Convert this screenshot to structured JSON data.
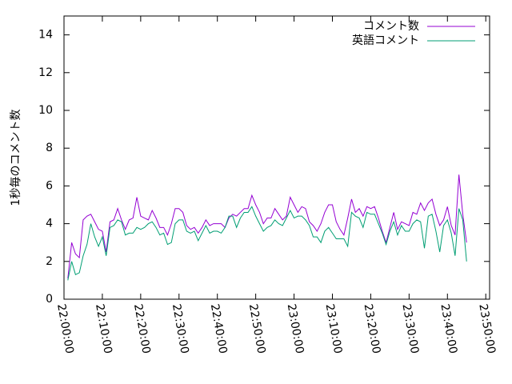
{
  "chart_data": {
    "type": "line",
    "y_label": "1秒毎のコメント数",
    "x": [
      "22:01:00",
      "22:02:00",
      "22:03:00",
      "22:04:00",
      "22:05:00",
      "22:06:00",
      "22:07:00",
      "22:08:00",
      "22:09:00",
      "22:10:00",
      "22:11:00",
      "22:12:00",
      "22:13:00",
      "22:14:00",
      "22:15:00",
      "22:16:00",
      "22:17:00",
      "22:18:00",
      "22:19:00",
      "22:20:00",
      "22:21:00",
      "22:22:00",
      "22:23:00",
      "22:24:00",
      "22:25:00",
      "22:26:00",
      "22:27:00",
      "22:28:00",
      "22:29:00",
      "22:30:00",
      "22:31:00",
      "22:32:00",
      "22:33:00",
      "22:34:00",
      "22:35:00",
      "22:36:00",
      "22:37:00",
      "22:38:00",
      "22:39:00",
      "22:40:00",
      "22:41:00",
      "22:42:00",
      "22:43:00",
      "22:44:00",
      "22:45:00",
      "22:46:00",
      "22:47:00",
      "22:48:00",
      "22:49:00",
      "22:50:00",
      "22:51:00",
      "22:52:00",
      "22:53:00",
      "22:54:00",
      "22:55:00",
      "22:56:00",
      "22:57:00",
      "22:58:00",
      "22:59:00",
      "23:00:00",
      "23:01:00",
      "23:02:00",
      "23:03:00",
      "23:04:00",
      "23:05:00",
      "23:06:00",
      "23:07:00",
      "23:08:00",
      "23:09:00",
      "23:10:00",
      "23:11:00",
      "23:12:00",
      "23:13:00",
      "23:14:00",
      "23:15:00",
      "23:16:00",
      "23:17:00",
      "23:18:00",
      "23:19:00",
      "23:20:00",
      "23:21:00",
      "23:22:00",
      "23:23:00",
      "23:24:00",
      "23:25:00",
      "23:26:00",
      "23:27:00",
      "23:28:00",
      "23:29:00",
      "23:30:00",
      "23:31:00",
      "23:32:00",
      "23:33:00",
      "23:34:00",
      "23:35:00",
      "23:36:00",
      "23:37:00",
      "23:38:00",
      "23:39:00",
      "23:40:00",
      "23:41:00",
      "23:42:00",
      "23:43:00",
      "23:44:00",
      "23:45:00"
    ],
    "series": [
      {
        "name": "コメント数",
        "color": "#9400d3",
        "values": [
          1.1,
          3.0,
          2.4,
          2.2,
          4.2,
          4.4,
          4.5,
          4.1,
          3.7,
          3.6,
          2.5,
          4.1,
          4.2,
          4.8,
          4.2,
          3.7,
          4.2,
          4.3,
          5.4,
          4.4,
          4.3,
          4.2,
          4.7,
          4.3,
          3.8,
          3.8,
          3.4,
          4.0,
          4.8,
          4.8,
          4.6,
          3.9,
          3.7,
          3.8,
          3.5,
          3.8,
          4.2,
          3.9,
          4.0,
          4.0,
          4.0,
          3.8,
          4.3,
          4.5,
          4.4,
          4.6,
          4.8,
          4.8,
          5.5,
          5.0,
          4.6,
          4.0,
          4.3,
          4.3,
          4.8,
          4.5,
          4.2,
          4.4,
          5.4,
          5.0,
          4.6,
          4.9,
          4.8,
          4.1,
          3.9,
          3.6,
          4.0,
          4.6,
          5.0,
          5.0,
          4.1,
          3.7,
          3.4,
          4.3,
          5.3,
          4.6,
          4.8,
          4.4,
          4.9,
          4.8,
          4.9,
          4.3,
          3.6,
          3.0,
          3.8,
          4.6,
          3.7,
          4.1,
          4.0,
          3.9,
          4.6,
          4.5,
          5.1,
          4.7,
          5.1,
          5.3,
          4.5,
          3.9,
          4.2,
          4.9,
          3.9,
          3.4,
          6.6,
          4.5,
          3.0
        ]
      },
      {
        "name": "英語コメント",
        "color": "#009e73",
        "values": [
          1.0,
          2.0,
          1.3,
          1.4,
          2.3,
          2.9,
          4.0,
          3.3,
          2.8,
          3.3,
          2.3,
          3.8,
          3.9,
          4.2,
          4.1,
          3.4,
          3.5,
          3.5,
          3.8,
          3.7,
          3.8,
          4.0,
          4.1,
          3.8,
          3.4,
          3.5,
          2.9,
          3.0,
          4.0,
          4.2,
          4.2,
          3.6,
          3.5,
          3.6,
          3.1,
          3.5,
          3.9,
          3.5,
          3.6,
          3.6,
          3.5,
          3.8,
          4.4,
          4.4,
          3.8,
          4.3,
          4.6,
          4.6,
          4.9,
          4.4,
          4.0,
          3.6,
          3.8,
          3.9,
          4.2,
          4.0,
          3.9,
          4.3,
          4.7,
          4.3,
          4.4,
          4.4,
          4.2,
          3.9,
          3.3,
          3.3,
          3.0,
          3.6,
          3.8,
          3.5,
          3.2,
          3.2,
          3.2,
          2.8,
          4.6,
          4.4,
          4.3,
          3.8,
          4.6,
          4.5,
          4.5,
          4.0,
          3.5,
          2.9,
          3.6,
          4.1,
          3.4,
          3.9,
          3.6,
          3.6,
          4.0,
          4.2,
          4.1,
          2.7,
          4.4,
          4.5,
          3.6,
          2.5,
          3.9,
          4.2,
          3.5,
          2.3,
          4.8,
          4.2,
          2.0
        ]
      }
    ],
    "xlim": [
      "22:00:00",
      "23:51:00"
    ],
    "xticks": [
      "22:00:00",
      "22:10:00",
      "22:20:00",
      "22:30:00",
      "22:40:00",
      "22:50:00",
      "23:00:00",
      "23:10:00",
      "23:20:00",
      "23:30:00",
      "23:40:00",
      "23:50:00"
    ],
    "ylim": [
      0,
      15
    ],
    "yticks": [
      0,
      2,
      4,
      6,
      8,
      10,
      12,
      14
    ],
    "legend": "upper-right"
  }
}
